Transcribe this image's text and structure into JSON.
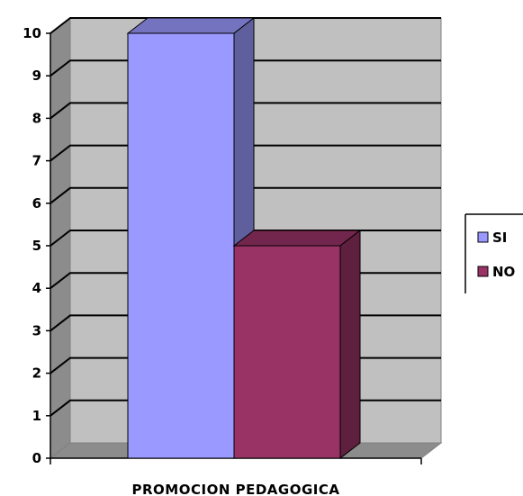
{
  "chart_data": {
    "type": "bar",
    "categories": [
      "PROMOCION PEDAGOGICA"
    ],
    "series": [
      {
        "name": "SI",
        "values": [
          10
        ],
        "color": "#9999ff"
      },
      {
        "name": "NO",
        "values": [
          5
        ],
        "color": "#993366"
      }
    ],
    "ylim": [
      0,
      10
    ],
    "yticks": [
      "0",
      "1",
      "2",
      "3",
      "4",
      "5",
      "6",
      "7",
      "8",
      "9",
      "10"
    ],
    "grid": true,
    "legend": "right",
    "style": "3d-column",
    "colors": {
      "wall": "#c0c0c0",
      "gridline": "#000000"
    }
  }
}
